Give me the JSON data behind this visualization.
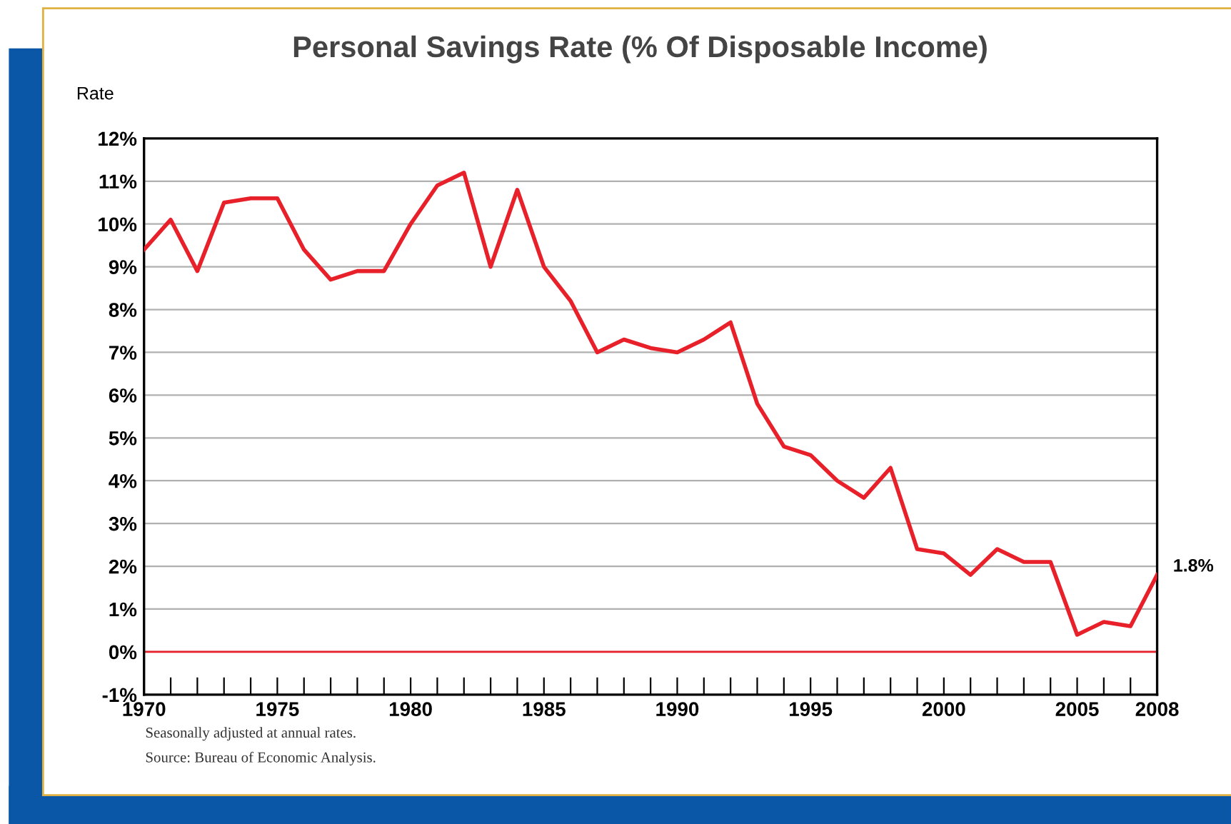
{
  "chart_data": {
    "type": "line",
    "title": "Personal Savings Rate (% Of Disposable Income)",
    "ylabel": "Rate",
    "x": [
      1970,
      1971,
      1972,
      1973,
      1974,
      1975,
      1976,
      1977,
      1978,
      1979,
      1980,
      1981,
      1982,
      1983,
      1984,
      1985,
      1986,
      1987,
      1988,
      1989,
      1990,
      1991,
      1992,
      1993,
      1994,
      1995,
      1996,
      1997,
      1998,
      1999,
      2000,
      2001,
      2002,
      2003,
      2004,
      2005,
      2006,
      2007,
      2008
    ],
    "series": [
      {
        "color": "#e8202a",
        "values": [
          9.4,
          10.1,
          8.9,
          10.5,
          10.6,
          10.6,
          9.4,
          8.7,
          8.9,
          8.9,
          10.0,
          10.9,
          11.2,
          9.0,
          10.8,
          9.0,
          8.2,
          7.0,
          7.3,
          7.1,
          7.0,
          7.3,
          7.7,
          5.8,
          4.8,
          4.6,
          4.0,
          3.6,
          4.3,
          2.4,
          2.3,
          1.8,
          2.4,
          2.1,
          2.1,
          0.4,
          0.7,
          0.6,
          1.8
        ]
      }
    ],
    "xlim": [
      1970,
      2008
    ],
    "xticks": [
      1970,
      {
        "value": 1971,
        "label": null
      },
      {
        "value": 1972,
        "label": null
      },
      {
        "value": 1973,
        "label": null
      },
      {
        "value": 1974,
        "label": null
      },
      1975,
      {
        "value": 1976,
        "label": null
      },
      {
        "value": 1977,
        "label": null
      },
      {
        "value": 1978,
        "label": null
      },
      {
        "value": 1979,
        "label": null
      },
      1980,
      {
        "value": 1981,
        "label": null
      },
      {
        "value": 1982,
        "label": null
      },
      {
        "value": 1983,
        "label": null
      },
      {
        "value": 1984,
        "label": null
      },
      1985,
      {
        "value": 1986,
        "label": null
      },
      {
        "value": 1987,
        "label": null
      },
      {
        "value": 1988,
        "label": null
      },
      {
        "value": 1989,
        "label": null
      },
      1990,
      {
        "value": 1991,
        "label": null
      },
      {
        "value": 1992,
        "label": null
      },
      {
        "value": 1993,
        "label": null
      },
      {
        "value": 1994,
        "label": null
      },
      1995,
      {
        "value": 1996,
        "label": null
      },
      {
        "value": 1997,
        "label": null
      },
      {
        "value": 1998,
        "label": null
      },
      {
        "value": 1999,
        "label": null
      },
      2000,
      {
        "value": 2001,
        "label": null
      },
      {
        "value": 2002,
        "label": null
      },
      {
        "value": 2003,
        "label": null
      },
      {
        "value": 2004,
        "label": null
      },
      2005,
      {
        "value": 2006,
        "label": null
      },
      {
        "value": 2007,
        "label": null
      },
      2008
    ],
    "ylim": [
      -1,
      12
    ],
    "yticks": [
      {
        "value": -1,
        "label": "-1%"
      },
      {
        "value": 0,
        "label": "0%"
      },
      {
        "value": 1,
        "label": "1%"
      },
      {
        "value": 2,
        "label": "2%"
      },
      {
        "value": 3,
        "label": "3%"
      },
      {
        "value": 4,
        "label": "4%"
      },
      {
        "value": 5,
        "label": "5%"
      },
      {
        "value": 6,
        "label": "6%"
      },
      {
        "value": 7,
        "label": "7%"
      },
      {
        "value": 8,
        "label": "8%"
      },
      {
        "value": 9,
        "label": "9%"
      },
      {
        "value": 10,
        "label": "10%"
      },
      {
        "value": 11,
        "label": "11%"
      },
      {
        "value": 12,
        "label": "12%"
      }
    ],
    "grid": "y",
    "line_style": "solid",
    "marker": "none",
    "ref_lines": [
      {
        "axis": "y",
        "value": 0,
        "color": "#e8202a"
      }
    ],
    "annotations": [
      {
        "text": "1.8%",
        "x": 2008,
        "y": 1.8
      },
      "Seasonally adjusted at annual rates.",
      "Source: Bureau of Economic Analysis."
    ]
  }
}
